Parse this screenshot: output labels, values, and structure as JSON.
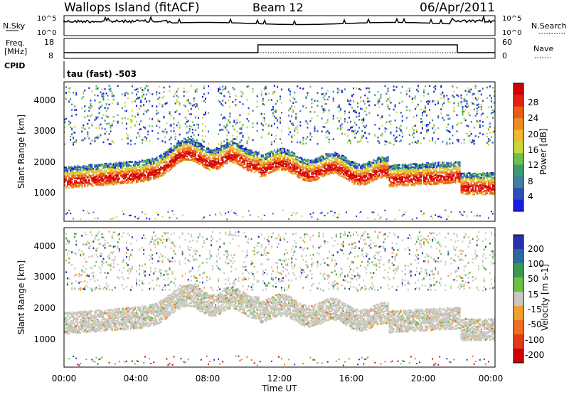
{
  "header": {
    "station": "Wallops Island (fitACF)",
    "beam": "Beam 12",
    "date": "06/Apr/2011"
  },
  "status_panels": {
    "nsky": {
      "label": "N.Sky",
      "ticks": [
        "10^5",
        "10^0"
      ],
      "right_label": "N.Search",
      "right_ticks": [
        "10^5",
        "10^0"
      ]
    },
    "freq": {
      "label_line1": "Freq.",
      "label_line2": "[MHz]",
      "ticks": [
        "18",
        "8"
      ],
      "right_label": "Nave",
      "right_ticks": [
        "60",
        "0"
      ],
      "step_times_h": [
        10.8,
        21.9
      ]
    },
    "cpid": {
      "label": "CPID",
      "program": "tau (fast) -503"
    }
  },
  "chart_data": [
    {
      "type": "heatmap",
      "parameter": "power",
      "ylabel": "Slant Range [km]",
      "ylim": [
        0,
        4500
      ],
      "yticks": [
        "1000",
        "2000",
        "3000",
        "4000"
      ],
      "xlim": [
        "00:00",
        "24:00"
      ],
      "colorbar": {
        "label": "Power [dB]",
        "ticks": [
          "4",
          "8",
          "12",
          "16",
          "20",
          "24",
          "28"
        ],
        "colors": [
          "#1a1ae6",
          "#2c4fb3",
          "#3f7fa0",
          "#3c9c6f",
          "#6cc04a",
          "#c8d83a",
          "#f2b830",
          "#f08a20",
          "#ee5a18",
          "#e42010",
          "#d00000"
        ]
      }
    },
    {
      "type": "heatmap",
      "parameter": "velocity",
      "ylabel": "Slant Range [km]",
      "ylim": [
        0,
        4500
      ],
      "yticks": [
        "1000",
        "2000",
        "3000",
        "4000"
      ],
      "xlim": [
        "00:00",
        "24:00"
      ],
      "colorbar": {
        "label": "Velocity [m s-1]",
        "ticks": [
          "200",
          "100",
          "50",
          "15",
          "-15",
          "-50",
          "-100",
          "-200"
        ],
        "colors": [
          "#2830b0",
          "#2a6a9c",
          "#3b9a4e",
          "#6cc044",
          "#c8c8c0",
          "#f2a030",
          "#ef7020",
          "#e23a14",
          "#d00000"
        ]
      }
    }
  ],
  "x_axis": {
    "ticks": [
      "00:00",
      "04:00",
      "08:00",
      "12:00",
      "16:00",
      "20:00",
      "00:00"
    ],
    "label": "Time UT"
  }
}
